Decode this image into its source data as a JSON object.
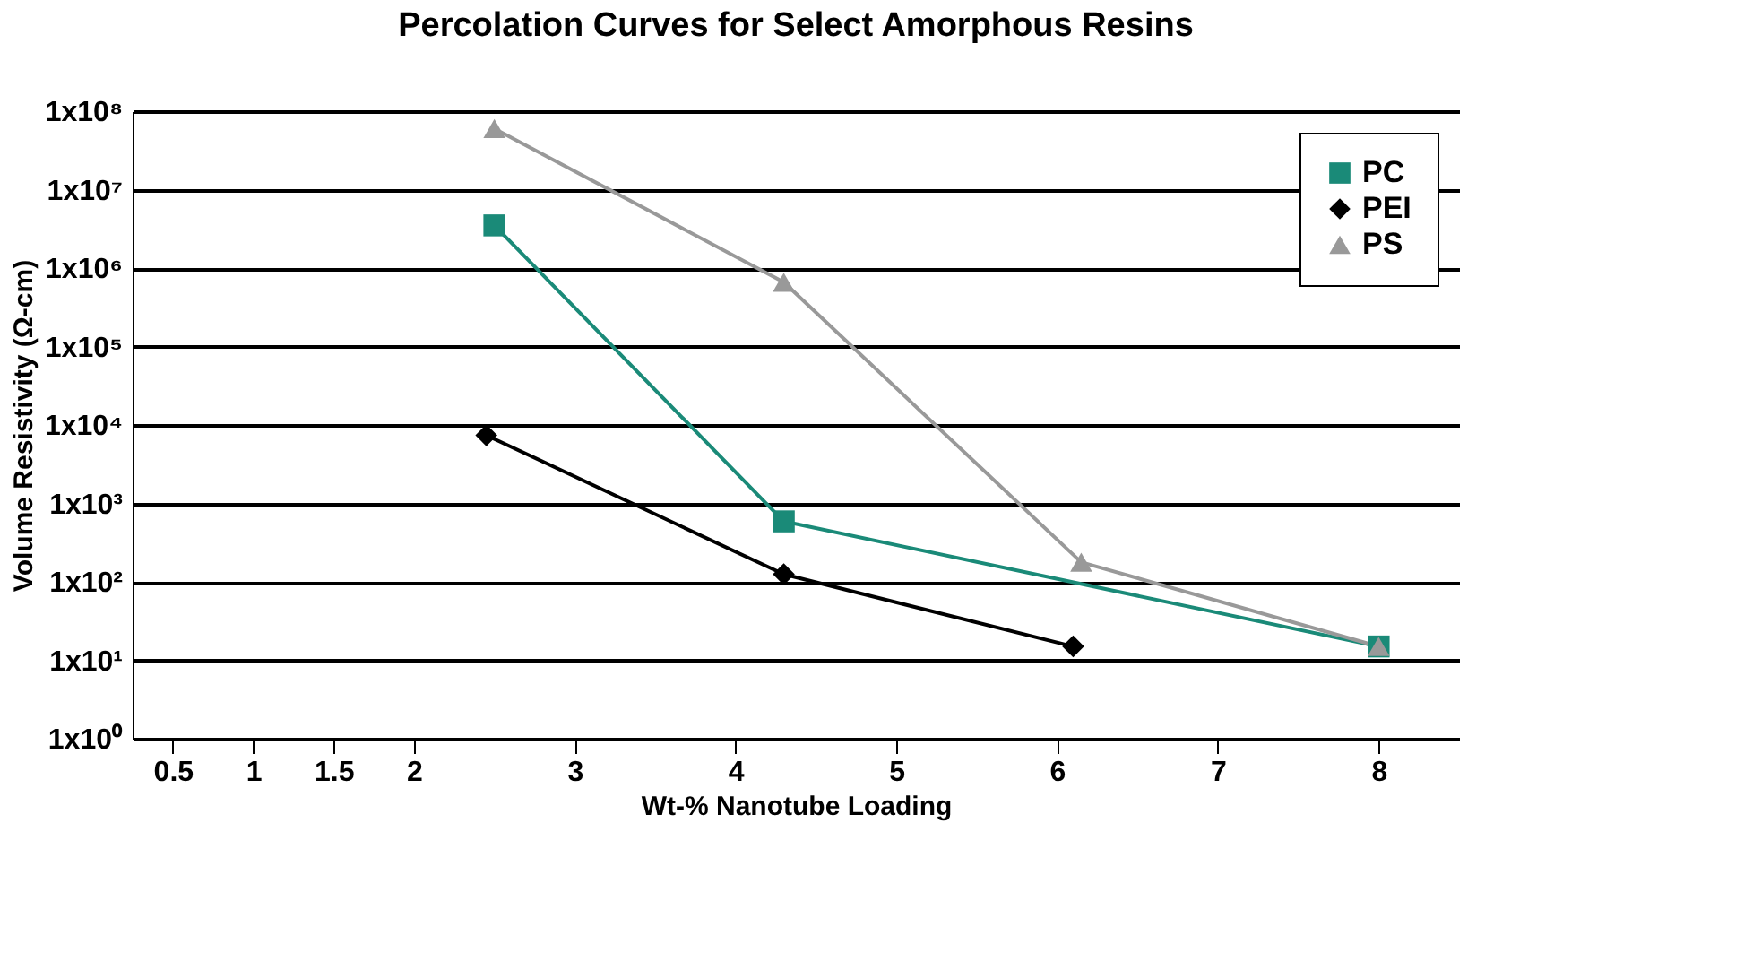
{
  "chart_data": {
    "type": "line",
    "title": "Percolation Curves for Select Amorphous Resins",
    "xlabel": "Wt-% Nanotube Loading",
    "ylabel": "Volume Resistivity (Ω-cm)",
    "log": "y",
    "grid": "y",
    "legend": "top right",
    "line_style": "solid",
    "xlim": [
      0.25,
      8.5
    ],
    "xticks": [
      0.5,
      1,
      1.5,
      2,
      3,
      4,
      5,
      6,
      7,
      8
    ],
    "ylim": [
      1,
      100000000
    ],
    "yticks": [
      {
        "value": 1,
        "label": "1x10⁰"
      },
      {
        "value": 10,
        "label": "1x10¹"
      },
      {
        "value": 100,
        "label": "1x10²"
      },
      {
        "value": 1000,
        "label": "1x10³"
      },
      {
        "value": 10000,
        "label": "1x10⁴"
      },
      {
        "value": 100000,
        "label": "1x10⁵"
      },
      {
        "value": 1000000,
        "label": "1x10⁶"
      },
      {
        "value": 10000000,
        "label": "1x10⁷"
      },
      {
        "value": 100000000,
        "label": "1x10⁸"
      }
    ],
    "series": [
      {
        "name": "PC",
        "color": "#1a8a78",
        "marker": "square",
        "x": [
          2.5,
          4.3,
          8
        ],
        "values": [
          3500000,
          590,
          15
        ]
      },
      {
        "name": "PEI",
        "color": "#000000",
        "marker": "diamond",
        "x": [
          2.45,
          4.3,
          6.1
        ],
        "values": [
          7400,
          125,
          15
        ]
      },
      {
        "name": "PS",
        "color": "#999999",
        "marker": "triangle",
        "x": [
          2.5,
          4.3,
          6.15,
          8
        ],
        "values": [
          60000000,
          660000,
          178,
          15
        ]
      }
    ]
  }
}
